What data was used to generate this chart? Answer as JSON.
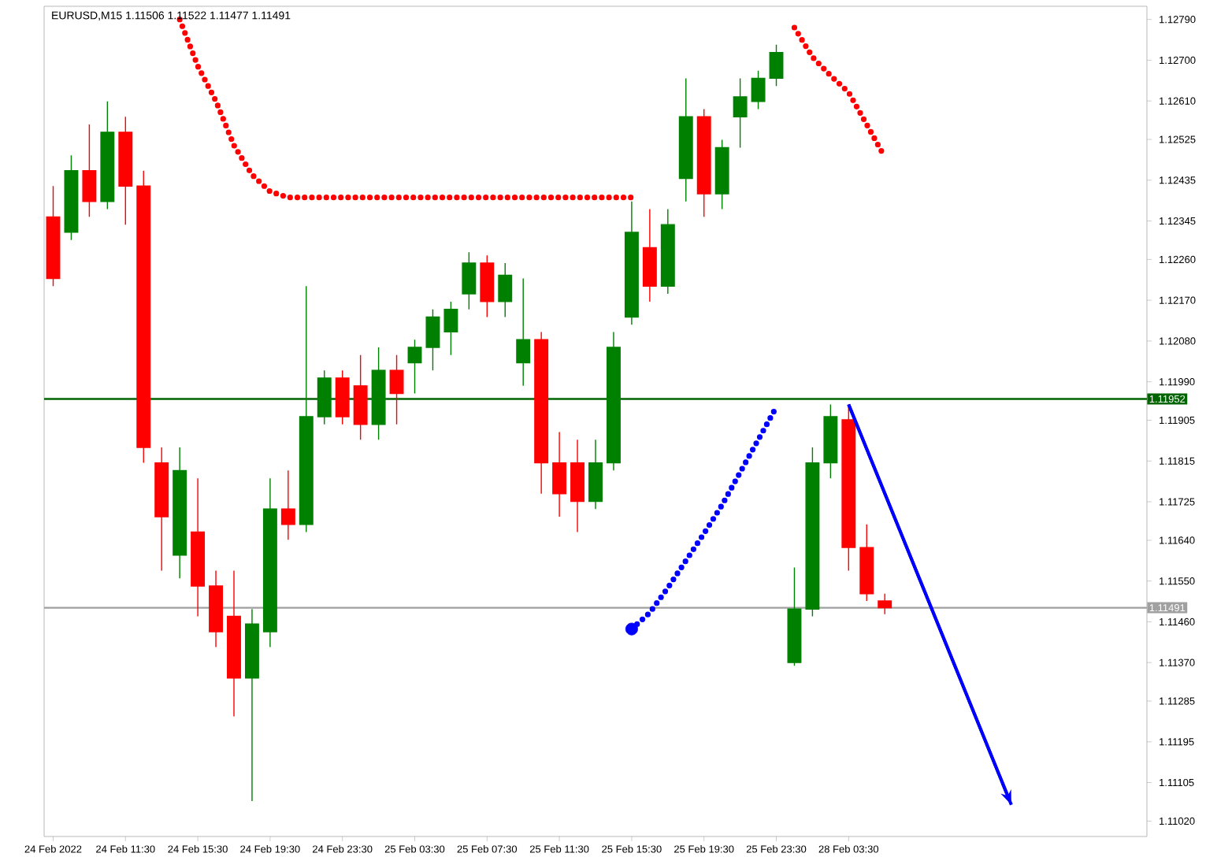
{
  "chart_data": {
    "type": "candlestick",
    "title": "EURUSD,M15 1.11506 1.11522 1.11477 1.11491",
    "categories": [
      "24 Feb 2022",
      null,
      null,
      null,
      "24 Feb 11:30",
      null,
      null,
      null,
      "24 Feb 15:30",
      null,
      null,
      null,
      "24 Feb 19:30",
      null,
      null,
      null,
      "24 Feb 23:30",
      null,
      null,
      null,
      "25 Feb 03:30",
      null,
      null,
      null,
      "25 Feb 07:30",
      null,
      null,
      null,
      "25 Feb 11:30",
      null,
      null,
      null,
      "25 Feb 15:30",
      null,
      null,
      null,
      "25 Feb 19:30",
      null,
      null,
      null,
      "25 Feb 23:30",
      null,
      null,
      null,
      "28 Feb 03:30",
      null,
      null,
      null,
      null,
      null,
      null,
      null,
      null,
      null,
      null,
      null,
      null,
      null,
      null,
      null,
      null
    ],
    "ohlc": [
      [
        1.12354,
        1.12422,
        1.12201,
        1.12218
      ],
      [
        1.1232,
        1.1249,
        1.12303,
        1.12456
      ],
      [
        1.12456,
        1.12558,
        1.12354,
        1.12388
      ],
      [
        1.12388,
        1.12609,
        1.12371,
        1.12541
      ],
      [
        1.12541,
        1.12575,
        1.12337,
        1.12422
      ],
      [
        1.12422,
        1.12456,
        1.11811,
        1.11845
      ],
      [
        1.11811,
        1.11845,
        1.11573,
        1.11692
      ],
      [
        1.11607,
        1.11845,
        1.11556,
        1.11794
      ],
      [
        1.11658,
        1.11777,
        1.11472,
        1.11539
      ],
      [
        1.11539,
        1.11573,
        1.11404,
        1.11438
      ],
      [
        1.11472,
        1.11573,
        1.11251,
        1.11336
      ],
      [
        1.11336,
        1.11488,
        1.11064,
        1.11455
      ],
      [
        1.11438,
        1.11777,
        1.11404,
        1.11709
      ],
      [
        1.11709,
        1.11794,
        1.11641,
        1.11675
      ],
      [
        1.11675,
        1.12201,
        1.11658,
        1.11913
      ],
      [
        1.11913,
        1.12015,
        1.11896,
        1.11998
      ],
      [
        1.11998,
        1.12015,
        1.11896,
        1.11913
      ],
      [
        1.11981,
        1.12049,
        1.11862,
        1.11896
      ],
      [
        1.11896,
        1.12066,
        1.11862,
        1.12015
      ],
      [
        1.12015,
        1.12049,
        1.11896,
        1.11964
      ],
      [
        1.12032,
        1.12083,
        1.11964,
        1.12066
      ],
      [
        1.12066,
        1.1215,
        1.12015,
        1.12133
      ],
      [
        1.121,
        1.12167,
        1.12049,
        1.1215
      ],
      [
        1.12184,
        1.12276,
        1.1215,
        1.12252
      ],
      [
        1.12252,
        1.12269,
        1.12133,
        1.12167
      ],
      [
        1.12167,
        1.12252,
        1.12133,
        1.12225
      ],
      [
        1.12032,
        1.12218,
        1.11981,
        1.12083
      ],
      [
        1.12083,
        1.121,
        1.11743,
        1.11811
      ],
      [
        1.11811,
        1.11879,
        1.11692,
        1.11743
      ],
      [
        1.11811,
        1.11862,
        1.11658,
        1.11726
      ],
      [
        1.11726,
        1.11862,
        1.11709,
        1.11811
      ],
      [
        1.11811,
        1.121,
        1.11794,
        1.12066
      ],
      [
        1.12133,
        1.12388,
        1.12116,
        1.1232
      ],
      [
        1.12286,
        1.12371,
        1.12167,
        1.12201
      ],
      [
        1.12201,
        1.12371,
        1.12184,
        1.12337
      ],
      [
        1.12439,
        1.1266,
        1.12388,
        1.12575
      ],
      [
        1.12575,
        1.12592,
        1.12354,
        1.12405
      ],
      [
        1.12405,
        1.12524,
        1.12371,
        1.12507
      ],
      [
        1.12575,
        1.1266,
        1.12507,
        1.12619
      ],
      [
        1.12609,
        1.12677,
        1.12592,
        1.1266
      ],
      [
        1.1266,
        1.12734,
        1.12643,
        1.12717
      ],
      [
        1.1137,
        1.1158,
        1.11363,
        1.11488
      ],
      [
        1.11488,
        1.11845,
        1.11472,
        1.11811
      ],
      [
        1.11811,
        1.1194,
        1.11777,
        1.11913
      ],
      [
        1.11906,
        1.1194,
        1.11573,
        1.11624
      ],
      [
        1.11624,
        1.11675,
        1.11506,
        1.11522
      ],
      [
        1.11506,
        1.11522,
        1.11477,
        1.11491
      ],
      null,
      null,
      null,
      null,
      null,
      null,
      null,
      null,
      null,
      null,
      null,
      null,
      null,
      null
    ],
    "colors": [
      "#ff0000",
      "#008000",
      "#ff0000",
      "#008000",
      "#ff0000",
      "#ff0000",
      "#ff0000",
      "#008000",
      "#ff0000",
      "#ff0000",
      "#ff0000",
      "#008000",
      "#008000",
      "#ff0000",
      "#008000",
      "#008000",
      "#ff0000",
      "#ff0000",
      "#008000",
      "#ff0000",
      "#008000",
      "#008000",
      "#008000",
      "#008000",
      "#ff0000",
      "#008000",
      "#008000",
      "#ff0000",
      "#ff0000",
      "#ff0000",
      "#008000",
      "#008000",
      "#008000",
      "#ff0000",
      "#008000",
      "#008000",
      "#ff0000",
      "#008000",
      "#008000",
      "#008000",
      "#008000",
      "#008000",
      "#008000",
      "#008000",
      "#ff0000",
      "#ff0000",
      "#ff0000",
      null,
      null,
      null,
      null,
      null,
      null,
      null,
      null,
      null,
      null,
      null,
      null,
      null,
      null
    ],
    "series": [
      {
        "type": "line",
        "color": "#ff0000",
        "line_style": "dotted",
        "values": [
          null,
          null,
          null,
          null,
          null,
          null,
          null,
          1.1279,
          1.12687,
          1.1261,
          1.12512,
          1.12447,
          1.1241,
          1.12397,
          1.12397,
          1.12397,
          1.12397,
          1.12397,
          1.12397,
          1.12397,
          1.12397,
          1.12397,
          1.12397,
          1.12397,
          1.12397,
          1.12397,
          1.12397,
          1.12397,
          1.12397,
          1.12397,
          1.12397,
          1.12397,
          1.12397,
          null,
          null,
          null,
          null,
          null,
          null,
          null,
          null,
          null,
          null,
          null,
          null,
          null,
          null,
          null,
          null,
          null,
          null,
          null,
          null,
          null,
          null,
          null,
          null,
          null,
          null,
          null,
          null
        ]
      },
      {
        "type": "line",
        "color": "#ff0000",
        "line_style": "dotted",
        "values": [
          null,
          null,
          null,
          null,
          null,
          null,
          null,
          null,
          null,
          null,
          null,
          null,
          null,
          null,
          null,
          null,
          null,
          null,
          null,
          null,
          null,
          null,
          null,
          null,
          null,
          null,
          null,
          null,
          null,
          null,
          null,
          null,
          null,
          null,
          null,
          null,
          null,
          null,
          null,
          null,
          null,
          1.12772,
          1.12707,
          1.12666,
          1.12629,
          1.12558,
          1.12486,
          null,
          null,
          null,
          null,
          null,
          null,
          null,
          null,
          null,
          null,
          null,
          null,
          null,
          null
        ]
      },
      {
        "type": "line",
        "color": "#0000ff",
        "line_style": "dotted",
        "values": [
          null,
          null,
          null,
          null,
          null,
          null,
          null,
          null,
          null,
          null,
          null,
          null,
          null,
          null,
          null,
          null,
          null,
          null,
          null,
          null,
          null,
          null,
          null,
          null,
          null,
          null,
          null,
          null,
          null,
          null,
          null,
          null,
          1.11444,
          1.1148,
          1.11535,
          1.11595,
          1.11655,
          1.11718,
          1.1179,
          1.11862,
          1.11934,
          null,
          null,
          null,
          null,
          null,
          null,
          null,
          null,
          null,
          null,
          null,
          null,
          null,
          null,
          null,
          null,
          null,
          null,
          null,
          null
        ]
      },
      {
        "type": "scatter",
        "color": "#0000ff",
        "marker": "circle",
        "values": [
          null,
          null,
          null,
          null,
          null,
          null,
          null,
          null,
          null,
          null,
          null,
          null,
          null,
          null,
          null,
          null,
          null,
          null,
          null,
          null,
          null,
          null,
          null,
          null,
          null,
          null,
          null,
          null,
          null,
          null,
          null,
          null,
          1.11444,
          null,
          null,
          null,
          null,
          null,
          null,
          null,
          null,
          null,
          null,
          null,
          null,
          null,
          null,
          null,
          null,
          null,
          null,
          null,
          null,
          null,
          null,
          null,
          null,
          null,
          null,
          null,
          null
        ]
      },
      {
        "type": "line",
        "color": "#0000ff",
        "line_style": "solid",
        "values": [
          null,
          null,
          null,
          null,
          null,
          null,
          null,
          null,
          null,
          null,
          null,
          null,
          null,
          null,
          null,
          null,
          null,
          null,
          null,
          null,
          null,
          null,
          null,
          null,
          null,
          null,
          null,
          null,
          null,
          null,
          null,
          null,
          null,
          null,
          null,
          null,
          null,
          null,
          null,
          null,
          null,
          null,
          null,
          null,
          1.1194,
          null,
          null,
          null,
          null,
          null,
          null,
          null,
          null,
          1.11056,
          null,
          null,
          null,
          null,
          null,
          null,
          null
        ]
      }
    ],
    "ref_lines": [
      {
        "axis": "y",
        "value": 1.11952,
        "label": "1.11952",
        "color": "#006400"
      },
      {
        "axis": "y",
        "value": 1.11491,
        "label": "1.11491",
        "color": "#a0a0a0"
      }
    ],
    "ylim": [
      1.10986,
      1.12819
    ],
    "yticks": [
      {
        "value": 1.1279,
        "label": "1.12790"
      },
      {
        "value": 1.127,
        "label": "1.12700"
      },
      {
        "value": 1.1261,
        "label": "1.12610"
      },
      {
        "value": 1.12525,
        "label": "1.12525"
      },
      {
        "value": 1.12435,
        "label": "1.12435"
      },
      {
        "value": 1.12345,
        "label": "1.12345"
      },
      {
        "value": 1.1226,
        "label": "1.12260"
      },
      {
        "value": 1.1217,
        "label": "1.12170"
      },
      {
        "value": 1.1208,
        "label": "1.12080"
      },
      {
        "value": 1.1199,
        "label": "1.11990"
      },
      {
        "value": 1.11905,
        "label": "1.11905"
      },
      {
        "value": 1.11815,
        "label": "1.11815"
      },
      {
        "value": 1.11725,
        "label": "1.11725"
      },
      {
        "value": 1.1164,
        "label": "1.11640"
      },
      {
        "value": 1.1155,
        "label": "1.11550"
      },
      {
        "value": 1.1146,
        "label": "1.11460"
      },
      {
        "value": 1.1137,
        "label": "1.11370"
      },
      {
        "value": 1.11285,
        "label": "1.11285"
      },
      {
        "value": 1.11195,
        "label": "1.11195"
      },
      {
        "value": 1.11105,
        "label": "1.11105"
      },
      {
        "value": 1.1102,
        "label": "1.11020"
      }
    ]
  }
}
